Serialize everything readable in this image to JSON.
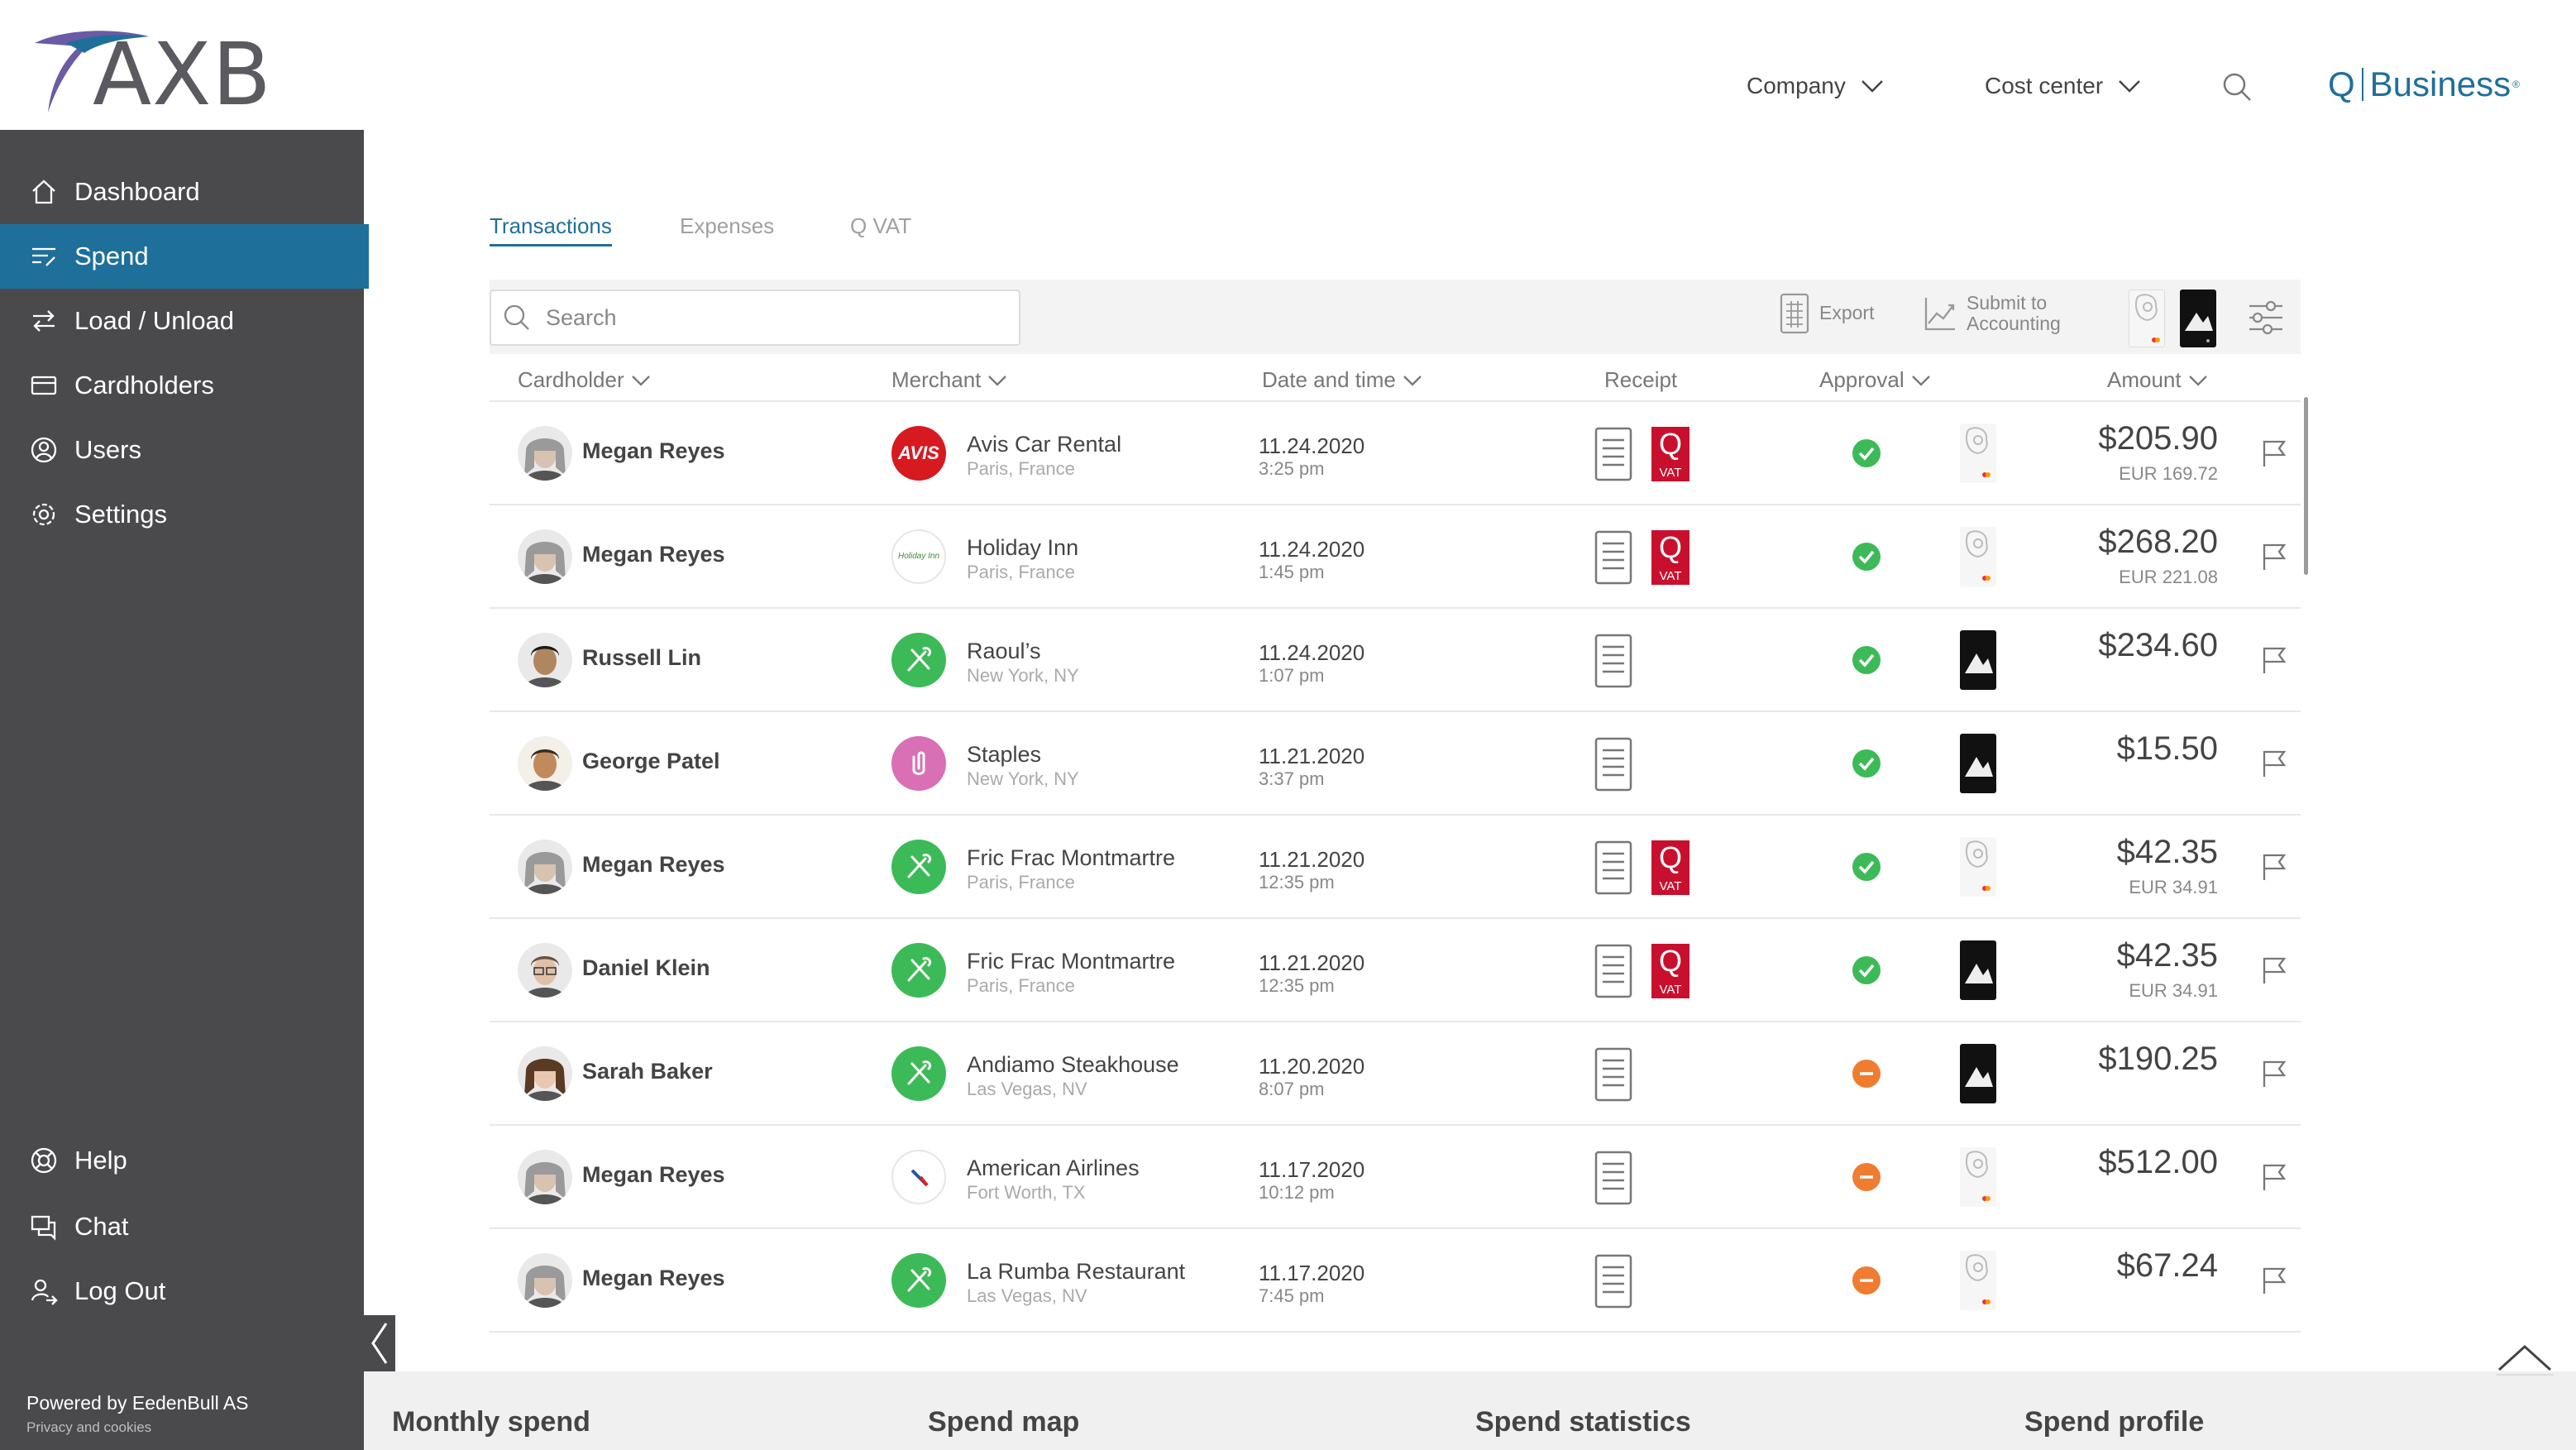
{
  "brand": {
    "logo_text": "AXB",
    "product_q": "Q",
    "product_name": "Business",
    "reg_mark": "®",
    "colors": {
      "accent": "#1f6f9b",
      "sidebar": "#4a4a4c",
      "logo_purple": "#6b5aa5",
      "vat_red": "#c8102e",
      "ok_green": "#3dba58",
      "pending_orange": "#f07c2f"
    }
  },
  "header": {
    "company_label": "Company",
    "cost_center_label": "Cost center",
    "search_icon": "search-icon"
  },
  "sidebar": {
    "items": [
      {
        "label": "Dashboard",
        "icon": "home-icon"
      },
      {
        "label": "Spend",
        "icon": "spend-icon",
        "active": true
      },
      {
        "label": "Load / Unload",
        "icon": "transfer-icon"
      },
      {
        "label": "Cardholders",
        "icon": "card-icon"
      },
      {
        "label": "Users",
        "icon": "user-icon"
      },
      {
        "label": "Settings",
        "icon": "gear-icon"
      }
    ],
    "bottom_items": [
      {
        "label": "Help",
        "icon": "lifebuoy-icon"
      },
      {
        "label": "Chat",
        "icon": "chat-icon"
      },
      {
        "label": "Log Out",
        "icon": "logout-icon"
      }
    ],
    "powered_by": "Powered by EedenBull AS",
    "privacy": "Privacy and cookies"
  },
  "tabs": [
    {
      "label": "Transactions",
      "active": true
    },
    {
      "label": "Expenses"
    },
    {
      "label": "Q VAT"
    }
  ],
  "toolbar": {
    "search_placeholder": "Search",
    "export_label": "Export",
    "submit_line1": "Submit to",
    "submit_line2": "Accounting"
  },
  "columns": {
    "cardholder": "Cardholder",
    "merchant": "Merchant",
    "date": "Date and time",
    "receipt": "Receipt",
    "approval": "Approval",
    "amount": "Amount"
  },
  "transactions": [
    {
      "cardholder": "Megan Reyes",
      "avatar": "woman-gray",
      "merchant": "Avis Car Rental",
      "location": "Paris, France",
      "logo": "avis",
      "date": "11.24.2020",
      "time": "3:25 pm",
      "vat": true,
      "status": "approved",
      "card": "white",
      "amount": "$205.90",
      "amount_sub": "EUR 169.72"
    },
    {
      "cardholder": "Megan Reyes",
      "avatar": "woman-gray",
      "merchant": "Holiday Inn",
      "location": "Paris, France",
      "logo": "holiday",
      "date": "11.24.2020",
      "time": "1:45 pm",
      "vat": true,
      "status": "approved",
      "card": "white",
      "amount": "$268.20",
      "amount_sub": "EUR 221.08"
    },
    {
      "cardholder": "Russell Lin",
      "avatar": "man-dark",
      "merchant": "Raoul’s",
      "location": "New York, NY",
      "logo": "restaurant",
      "date": "11.24.2020",
      "time": "1:07 pm",
      "vat": false,
      "status": "approved",
      "card": "black",
      "amount": "$234.60",
      "amount_sub": ""
    },
    {
      "cardholder": "George Patel",
      "avatar": "man-tan",
      "merchant": "Staples",
      "location": "New York, NY",
      "logo": "office",
      "date": "11.21.2020",
      "time": "3:37 pm",
      "vat": false,
      "status": "approved",
      "card": "black",
      "amount": "$15.50",
      "amount_sub": ""
    },
    {
      "cardholder": "Megan Reyes",
      "avatar": "woman-gray",
      "merchant": "Fric Frac Montmartre",
      "location": "Paris, France",
      "logo": "restaurant",
      "date": "11.21.2020",
      "time": "12:35 pm",
      "vat": true,
      "status": "approved",
      "card": "white",
      "amount": "$42.35",
      "amount_sub": "EUR 34.91"
    },
    {
      "cardholder": "Daniel Klein",
      "avatar": "man-glasses",
      "merchant": "Fric Frac Montmartre",
      "location": "Paris, France",
      "logo": "restaurant",
      "date": "11.21.2020",
      "time": "12:35 pm",
      "vat": true,
      "status": "approved",
      "card": "black",
      "amount": "$42.35",
      "amount_sub": "EUR 34.91"
    },
    {
      "cardholder": "Sarah Baker",
      "avatar": "woman-brown",
      "merchant": "Andiamo Steakhouse",
      "location": "Las Vegas, NV",
      "logo": "restaurant",
      "date": "11.20.2020",
      "time": "8:07 pm",
      "vat": false,
      "status": "pending",
      "card": "black",
      "amount": "$190.25",
      "amount_sub": ""
    },
    {
      "cardholder": "Megan Reyes",
      "avatar": "woman-gray",
      "merchant": "American Airlines",
      "location": "Fort Worth, TX",
      "logo": "airline",
      "date": "11.17.2020",
      "time": "10:12 pm",
      "vat": false,
      "status": "pending",
      "card": "white",
      "amount": "$512.00",
      "amount_sub": ""
    },
    {
      "cardholder": "Megan Reyes",
      "avatar": "woman-gray",
      "merchant": "La Rumba Restaurant",
      "location": "Las Vegas, NV",
      "logo": "restaurant",
      "date": "11.17.2020",
      "time": "7:45 pm",
      "vat": false,
      "status": "pending",
      "card": "white",
      "amount": "$67.24",
      "amount_sub": ""
    }
  ],
  "labels": {
    "avis_logo": "AVIS",
    "holiday_logo": "Holiday Inn",
    "vat_q": "Q",
    "vat_text": "VAT"
  },
  "bottom_panels": [
    {
      "title": "Monthly spend"
    },
    {
      "title": "Spend map"
    },
    {
      "title": "Spend statistics"
    },
    {
      "title": "Spend profile"
    }
  ]
}
